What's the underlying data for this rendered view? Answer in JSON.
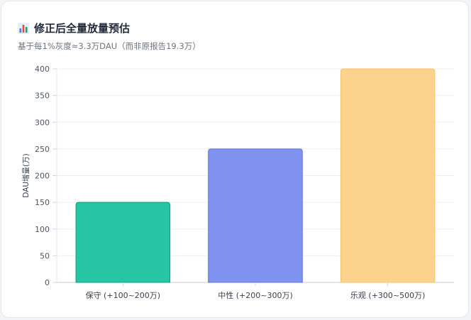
{
  "header": {
    "icon": "bar-chart-icon",
    "title": "修正后全量放量预估",
    "subtitle": "基于每1%灰度≈3.3万DAU（而非原报告19.3万）"
  },
  "chart_data": {
    "type": "bar",
    "categories": [
      "保守 (+100~200万)",
      "中性 (+200~300万)",
      "乐观 (+300~500万)"
    ],
    "values": [
      150,
      250,
      400
    ],
    "colors": [
      "#26c6a4",
      "#8093f1",
      "#fbd38d"
    ],
    "border_colors": [
      "#0e9f7e",
      "#5f6fd9",
      "#f6c56b"
    ],
    "ylabel": "DAU增量(万)",
    "xlabel": "",
    "ylim": [
      0,
      400
    ],
    "yticks": [
      0,
      50,
      100,
      150,
      200,
      250,
      300,
      350,
      400
    ],
    "grid": true,
    "legend": false
  }
}
